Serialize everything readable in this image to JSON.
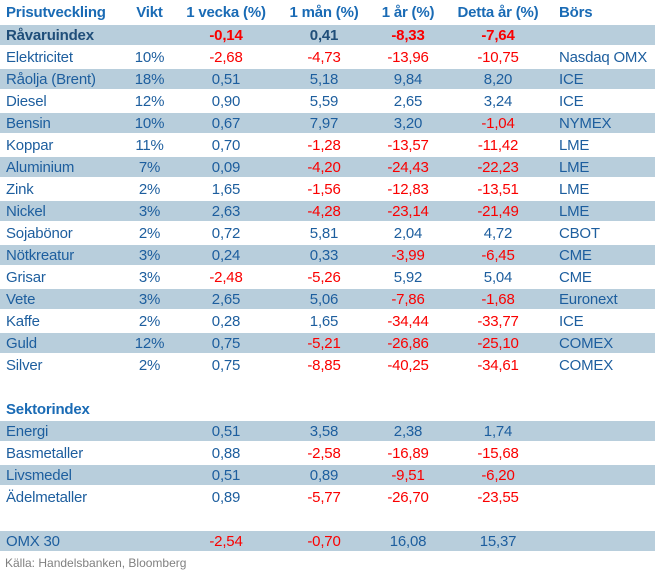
{
  "table": {
    "columns": [
      "Prisutveckling",
      "Vikt",
      "1 vecka (%)",
      "1 mån (%)",
      "1 år (%)",
      "Detta år (%)",
      "Börs"
    ],
    "rows": [
      {
        "type": "data",
        "band": true,
        "bold": true,
        "label": "Råvaruindex",
        "vikt": "",
        "v": [
          "-0,14",
          "0,41",
          "-8,33",
          "-7,64"
        ],
        "bors": ""
      },
      {
        "type": "data",
        "band": false,
        "bold": false,
        "label": "Elektricitet",
        "vikt": "10%",
        "v": [
          "-2,68",
          "-4,73",
          "-13,96",
          "-10,75"
        ],
        "bors": "Nasdaq OMX"
      },
      {
        "type": "data",
        "band": true,
        "bold": false,
        "label": "Råolja (Brent)",
        "vikt": "18%",
        "v": [
          "0,51",
          "5,18",
          "9,84",
          "8,20"
        ],
        "bors": "ICE"
      },
      {
        "type": "data",
        "band": false,
        "bold": false,
        "label": "Diesel",
        "vikt": "12%",
        "v": [
          "0,90",
          "5,59",
          "2,65",
          "3,24"
        ],
        "bors": "ICE"
      },
      {
        "type": "data",
        "band": true,
        "bold": false,
        "label": "Bensin",
        "vikt": "10%",
        "v": [
          "0,67",
          "7,97",
          "3,20",
          "-1,04"
        ],
        "bors": "NYMEX"
      },
      {
        "type": "data",
        "band": false,
        "bold": false,
        "label": "Koppar",
        "vikt": "11%",
        "v": [
          "0,70",
          "-1,28",
          "-13,57",
          "-11,42"
        ],
        "bors": "LME"
      },
      {
        "type": "data",
        "band": true,
        "bold": false,
        "label": "Aluminium",
        "vikt": "7%",
        "v": [
          "0,09",
          "-4,20",
          "-24,43",
          "-22,23"
        ],
        "bors": "LME"
      },
      {
        "type": "data",
        "band": false,
        "bold": false,
        "label": "Zink",
        "vikt": "2%",
        "v": [
          "1,65",
          "-1,56",
          "-12,83",
          "-13,51"
        ],
        "bors": "LME"
      },
      {
        "type": "data",
        "band": true,
        "bold": false,
        "label": "Nickel",
        "vikt": "3%",
        "v": [
          "2,63",
          "-4,28",
          "-23,14",
          "-21,49"
        ],
        "bors": "LME"
      },
      {
        "type": "data",
        "band": false,
        "bold": false,
        "label": "Sojabönor",
        "vikt": "2%",
        "v": [
          "0,72",
          "5,81",
          "2,04",
          "4,72"
        ],
        "bors": "CBOT"
      },
      {
        "type": "data",
        "band": true,
        "bold": false,
        "label": "Nötkreatur",
        "vikt": "3%",
        "v": [
          "0,24",
          "0,33",
          "-3,99",
          "-6,45"
        ],
        "bors": "CME"
      },
      {
        "type": "data",
        "band": false,
        "bold": false,
        "label": "Grisar",
        "vikt": "3%",
        "v": [
          "-2,48",
          "-5,26",
          "5,92",
          "5,04"
        ],
        "bors": "CME"
      },
      {
        "type": "data",
        "band": true,
        "bold": false,
        "label": "Vete",
        "vikt": "3%",
        "v": [
          "2,65",
          "5,06",
          "-7,86",
          "-1,68"
        ],
        "bors": "Euronext"
      },
      {
        "type": "data",
        "band": false,
        "bold": false,
        "label": "Kaffe",
        "vikt": "2%",
        "v": [
          "0,28",
          "1,65",
          "-34,44",
          "-33,77"
        ],
        "bors": "ICE"
      },
      {
        "type": "data",
        "band": true,
        "bold": false,
        "label": "Guld",
        "vikt": "12%",
        "v": [
          "0,75",
          "-5,21",
          "-26,86",
          "-25,10"
        ],
        "bors": "COMEX"
      },
      {
        "type": "data",
        "band": false,
        "bold": false,
        "label": "Silver",
        "vikt": "2%",
        "v": [
          "0,75",
          "-8,85",
          "-40,25",
          "-34,61"
        ],
        "bors": "COMEX"
      },
      {
        "type": "spacer"
      },
      {
        "type": "section",
        "label": "Sektorindex"
      },
      {
        "type": "data",
        "band": true,
        "bold": false,
        "label": "Energi",
        "vikt": "",
        "v": [
          "0,51",
          "3,58",
          "2,38",
          "1,74"
        ],
        "bors": ""
      },
      {
        "type": "data",
        "band": false,
        "bold": false,
        "label": "Basmetaller",
        "vikt": "",
        "v": [
          "0,88",
          "-2,58",
          "-16,89",
          "-15,68"
        ],
        "bors": ""
      },
      {
        "type": "data",
        "band": true,
        "bold": false,
        "label": "Livsmedel",
        "vikt": "",
        "v": [
          "0,51",
          "0,89",
          "-9,51",
          "-6,20"
        ],
        "bors": ""
      },
      {
        "type": "data",
        "band": false,
        "bold": false,
        "label": "Ädelmetaller",
        "vikt": "",
        "v": [
          "0,89",
          "-5,77",
          "-26,70",
          "-23,55"
        ],
        "bors": ""
      },
      {
        "type": "spacer"
      },
      {
        "type": "data",
        "band": true,
        "bold": false,
        "label": "OMX 30",
        "vikt": "",
        "v": [
          "-2,54",
          "-0,70",
          "16,08",
          "15,37"
        ],
        "bors": ""
      }
    ]
  },
  "source": "Källa: Handelsbanken, Bloomberg",
  "colors": {
    "band": "#B8CEDC",
    "header_blue": "#1A6BB5",
    "text_blue": "#1D5E9E",
    "index_navy": "#1F4E79",
    "negative_red": "#FA0000",
    "source_gray": "#808080"
  }
}
